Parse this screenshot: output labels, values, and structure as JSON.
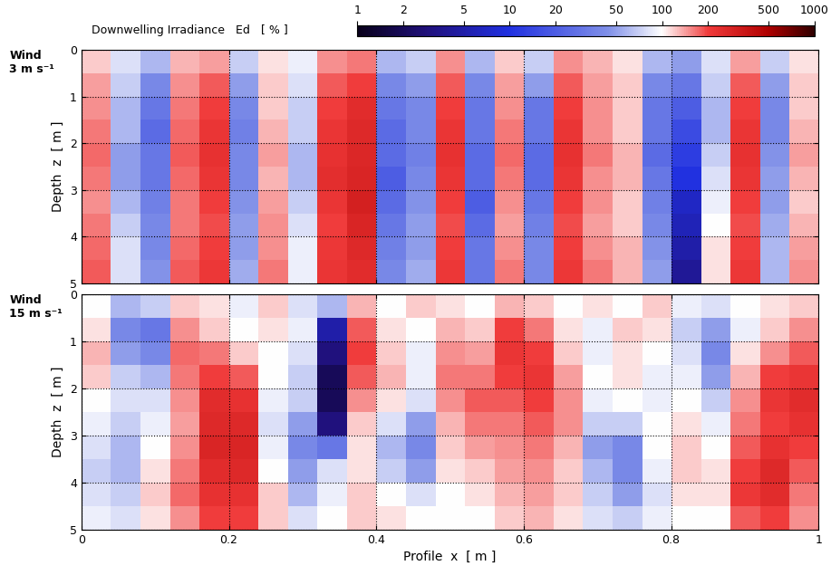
{
  "colorbar": {
    "label": "Downwelling Irradiance   Ed   [ % ]",
    "range": [
      1,
      1000
    ],
    "ticks": [
      1,
      2,
      5,
      10,
      20,
      50,
      100,
      200,
      500,
      1000
    ],
    "log": true
  },
  "chart_data": [
    {
      "type": "heatmap",
      "panel_label": "Wind\n3 m s⁻¹",
      "ylabel": "Depth  z  [ m ]",
      "xlim": [
        0,
        1
      ],
      "xticks": [
        0,
        0.2,
        0.4,
        0.6,
        0.8,
        1
      ],
      "ylim": [
        5,
        0
      ],
      "yticks": [
        0,
        1,
        2,
        3,
        4,
        5
      ],
      "grid": true,
      "tick_labels": "y",
      "cells": [
        [
          120,
          80,
          60,
          130,
          140,
          70,
          110,
          90,
          150,
          160,
          60,
          70,
          150,
          60,
          120,
          70,
          150,
          130,
          110,
          60,
          50,
          80,
          140,
          70,
          110
        ],
        [
          140,
          70,
          40,
          150,
          180,
          50,
          120,
          80,
          180,
          200,
          40,
          50,
          180,
          40,
          140,
          50,
          180,
          140,
          120,
          40,
          30,
          70,
          180,
          50,
          120
        ],
        [
          150,
          60,
          30,
          160,
          200,
          40,
          120,
          70,
          200,
          250,
          30,
          40,
          200,
          30,
          150,
          30,
          200,
          150,
          120,
          30,
          20,
          60,
          200,
          40,
          120
        ],
        [
          160,
          60,
          25,
          170,
          220,
          35,
          130,
          70,
          220,
          260,
          25,
          40,
          220,
          30,
          160,
          30,
          220,
          150,
          120,
          30,
          15,
          60,
          220,
          40,
          130
        ],
        [
          170,
          50,
          30,
          180,
          230,
          40,
          140,
          60,
          230,
          270,
          25,
          35,
          230,
          25,
          170,
          25,
          230,
          160,
          130,
          25,
          12,
          70,
          230,
          45,
          140
        ],
        [
          160,
          50,
          30,
          170,
          220,
          40,
          130,
          60,
          240,
          280,
          20,
          40,
          220,
          25,
          160,
          25,
          220,
          150,
          130,
          30,
          10,
          80,
          220,
          50,
          130
        ],
        [
          150,
          60,
          35,
          160,
          200,
          45,
          140,
          70,
          220,
          300,
          25,
          45,
          200,
          20,
          150,
          30,
          200,
          150,
          120,
          35,
          7,
          90,
          200,
          50,
          120
        ],
        [
          160,
          70,
          40,
          160,
          190,
          50,
          150,
          80,
          200,
          280,
          30,
          50,
          190,
          25,
          140,
          35,
          190,
          140,
          120,
          40,
          6,
          100,
          190,
          55,
          130
        ],
        [
          170,
          80,
          40,
          170,
          200,
          50,
          150,
          90,
          210,
          260,
          35,
          50,
          200,
          30,
          150,
          40,
          200,
          150,
          130,
          45,
          5,
          110,
          200,
          60,
          140
        ],
        [
          180,
          80,
          45,
          180,
          210,
          55,
          160,
          90,
          220,
          250,
          40,
          55,
          210,
          30,
          160,
          40,
          210,
          160,
          130,
          50,
          4,
          110,
          210,
          60,
          150
        ]
      ]
    },
    {
      "type": "heatmap",
      "panel_label": "Wind\n15 m s⁻¹",
      "ylabel": "Depth  z  [ m ]",
      "xlabel": "Profile  x  [ m ]",
      "xlim": [
        0,
        1
      ],
      "xticks": [
        0,
        0.2,
        0.4,
        0.6,
        0.8,
        1
      ],
      "ylim": [
        5,
        0
      ],
      "yticks": [
        0,
        1,
        2,
        3,
        4,
        5
      ],
      "grid": true,
      "tick_labels": true,
      "cells": [
        [
          100,
          60,
          70,
          120,
          110,
          90,
          120,
          80,
          60,
          130,
          100,
          120,
          110,
          100,
          130,
          120,
          100,
          110,
          100,
          120,
          90,
          80,
          100,
          110,
          120
        ],
        [
          110,
          40,
          30,
          150,
          120,
          100,
          110,
          90,
          5,
          180,
          110,
          100,
          130,
          120,
          200,
          160,
          110,
          90,
          120,
          110,
          70,
          50,
          90,
          120,
          150
        ],
        [
          130,
          50,
          40,
          170,
          160,
          120,
          100,
          80,
          3,
          200,
          120,
          90,
          150,
          140,
          220,
          200,
          120,
          90,
          110,
          100,
          80,
          40,
          110,
          150,
          180
        ],
        [
          120,
          70,
          60,
          160,
          200,
          180,
          100,
          70,
          2,
          180,
          130,
          90,
          160,
          160,
          200,
          220,
          140,
          100,
          110,
          90,
          90,
          50,
          130,
          200,
          220
        ],
        [
          100,
          80,
          80,
          150,
          250,
          230,
          90,
          70,
          2,
          150,
          110,
          80,
          150,
          180,
          180,
          200,
          150,
          90,
          100,
          90,
          100,
          70,
          150,
          220,
          250
        ],
        [
          90,
          70,
          90,
          140,
          260,
          260,
          80,
          50,
          3,
          120,
          80,
          50,
          130,
          160,
          160,
          180,
          150,
          70,
          70,
          100,
          110,
          90,
          160,
          200,
          230
        ],
        [
          80,
          60,
          100,
          150,
          280,
          280,
          90,
          40,
          30,
          110,
          60,
          40,
          120,
          140,
          150,
          160,
          130,
          50,
          40,
          100,
          120,
          100,
          180,
          230,
          200
        ],
        [
          70,
          60,
          110,
          160,
          250,
          260,
          100,
          50,
          80,
          110,
          70,
          50,
          110,
          120,
          140,
          150,
          120,
          60,
          40,
          90,
          120,
          110,
          200,
          260,
          180
        ],
        [
          80,
          70,
          120,
          170,
          230,
          230,
          120,
          60,
          90,
          120,
          100,
          80,
          100,
          110,
          130,
          140,
          120,
          70,
          50,
          80,
          110,
          110,
          210,
          250,
          160
        ],
        [
          90,
          80,
          110,
          150,
          200,
          200,
          120,
          80,
          100,
          120,
          110,
          100,
          100,
          100,
          120,
          130,
          110,
          80,
          70,
          90,
          100,
          100,
          180,
          200,
          150
        ]
      ]
    }
  ]
}
